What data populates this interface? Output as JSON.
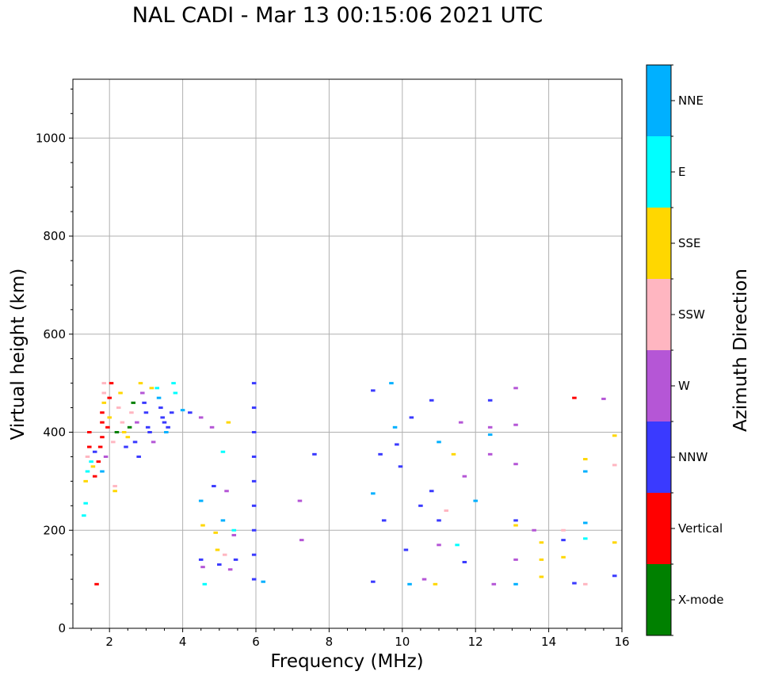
{
  "chart_data": {
    "type": "scatter",
    "title": "NAL CADI - Mar 13 00:15:06 2021 UTC",
    "xlabel": "Frequency (MHz)",
    "ylabel": "Virtual height (km)",
    "xlim": [
      1,
      16
    ],
    "ylim": [
      0,
      1120
    ],
    "xticks": [
      2,
      4,
      6,
      8,
      10,
      12,
      14,
      16
    ],
    "yticks": [
      0,
      200,
      400,
      600,
      800,
      1000
    ],
    "grid": true,
    "colorbar": {
      "label": "Azimuth Direction",
      "categories": [
        {
          "name": "X-mode",
          "color": "#008000"
        },
        {
          "name": "Vertical",
          "color": "#ff0000"
        },
        {
          "name": "NNW",
          "color": "#3a3aff"
        },
        {
          "name": "W",
          "color": "#b556d6"
        },
        {
          "name": "SSW",
          "color": "#ffb6c1"
        },
        {
          "name": "SSE",
          "color": "#ffd700"
        },
        {
          "name": "E",
          "color": "#00ffff"
        },
        {
          "name": "NNE",
          "color": "#00b0ff"
        }
      ]
    },
    "points": [
      {
        "f": 1.3,
        "h": 230,
        "c": "E"
      },
      {
        "f": 1.35,
        "h": 255,
        "c": "E"
      },
      {
        "f": 1.35,
        "h": 300,
        "c": "SSE"
      },
      {
        "f": 1.4,
        "h": 320,
        "c": "E"
      },
      {
        "f": 1.4,
        "h": 350,
        "c": "SSW"
      },
      {
        "f": 1.45,
        "h": 370,
        "c": "Vertical"
      },
      {
        "f": 1.45,
        "h": 400,
        "c": "Vertical"
      },
      {
        "f": 1.5,
        "h": 340,
        "c": "E"
      },
      {
        "f": 1.55,
        "h": 330,
        "c": "SSE"
      },
      {
        "f": 1.6,
        "h": 310,
        "c": "Vertical"
      },
      {
        "f": 1.6,
        "h": 360,
        "c": "NNW"
      },
      {
        "f": 1.65,
        "h": 90,
        "c": "Vertical"
      },
      {
        "f": 1.7,
        "h": 340,
        "c": "Vertical"
      },
      {
        "f": 1.75,
        "h": 370,
        "c": "Vertical"
      },
      {
        "f": 1.8,
        "h": 390,
        "c": "Vertical"
      },
      {
        "f": 1.8,
        "h": 420,
        "c": "Vertical"
      },
      {
        "f": 1.8,
        "h": 440,
        "c": "Vertical"
      },
      {
        "f": 1.85,
        "h": 460,
        "c": "SSE"
      },
      {
        "f": 1.85,
        "h": 480,
        "c": "SSW"
      },
      {
        "f": 1.85,
        "h": 500,
        "c": "SSW"
      },
      {
        "f": 1.8,
        "h": 320,
        "c": "NNE"
      },
      {
        "f": 1.9,
        "h": 350,
        "c": "W"
      },
      {
        "f": 1.95,
        "h": 410,
        "c": "Vertical"
      },
      {
        "f": 2.0,
        "h": 430,
        "c": "SSE"
      },
      {
        "f": 2.0,
        "h": 470,
        "c": "Vertical"
      },
      {
        "f": 2.05,
        "h": 500,
        "c": "Vertical"
      },
      {
        "f": 2.1,
        "h": 380,
        "c": "SSW"
      },
      {
        "f": 2.15,
        "h": 280,
        "c": "SSE"
      },
      {
        "f": 2.15,
        "h": 290,
        "c": "SSW"
      },
      {
        "f": 2.2,
        "h": 400,
        "c": "X-mode"
      },
      {
        "f": 2.25,
        "h": 450,
        "c": "SSW"
      },
      {
        "f": 2.3,
        "h": 480,
        "c": "SSE"
      },
      {
        "f": 2.35,
        "h": 420,
        "c": "SSW"
      },
      {
        "f": 2.4,
        "h": 400,
        "c": "SSE"
      },
      {
        "f": 2.45,
        "h": 370,
        "c": "NNW"
      },
      {
        "f": 2.5,
        "h": 390,
        "c": "SSE"
      },
      {
        "f": 2.55,
        "h": 410,
        "c": "X-mode"
      },
      {
        "f": 2.6,
        "h": 440,
        "c": "SSW"
      },
      {
        "f": 2.65,
        "h": 460,
        "c": "X-mode"
      },
      {
        "f": 2.7,
        "h": 380,
        "c": "NNW"
      },
      {
        "f": 2.75,
        "h": 420,
        "c": "W"
      },
      {
        "f": 2.8,
        "h": 350,
        "c": "NNW"
      },
      {
        "f": 2.85,
        "h": 500,
        "c": "SSE"
      },
      {
        "f": 2.9,
        "h": 480,
        "c": "W"
      },
      {
        "f": 2.95,
        "h": 460,
        "c": "NNW"
      },
      {
        "f": 3.0,
        "h": 440,
        "c": "NNW"
      },
      {
        "f": 3.05,
        "h": 410,
        "c": "NNW"
      },
      {
        "f": 3.1,
        "h": 400,
        "c": "NNW"
      },
      {
        "f": 3.15,
        "h": 490,
        "c": "SSE"
      },
      {
        "f": 3.2,
        "h": 380,
        "c": "W"
      },
      {
        "f": 3.3,
        "h": 490,
        "c": "E"
      },
      {
        "f": 3.35,
        "h": 470,
        "c": "NNE"
      },
      {
        "f": 3.4,
        "h": 450,
        "c": "NNW"
      },
      {
        "f": 3.45,
        "h": 430,
        "c": "NNW"
      },
      {
        "f": 3.5,
        "h": 420,
        "c": "NNW"
      },
      {
        "f": 3.55,
        "h": 400,
        "c": "NNE"
      },
      {
        "f": 3.6,
        "h": 410,
        "c": "NNW"
      },
      {
        "f": 3.7,
        "h": 440,
        "c": "NNW"
      },
      {
        "f": 3.75,
        "h": 500,
        "c": "E"
      },
      {
        "f": 3.8,
        "h": 480,
        "c": "E"
      },
      {
        "f": 4.0,
        "h": 445,
        "c": "NNE"
      },
      {
        "f": 4.2,
        "h": 440,
        "c": "NNW"
      },
      {
        "f": 4.5,
        "h": 430,
        "c": "W"
      },
      {
        "f": 4.5,
        "h": 260,
        "c": "NNE"
      },
      {
        "f": 4.55,
        "h": 210,
        "c": "SSE"
      },
      {
        "f": 4.5,
        "h": 140,
        "c": "NNW"
      },
      {
        "f": 4.55,
        "h": 125,
        "c": "W"
      },
      {
        "f": 4.6,
        "h": 90,
        "c": "E"
      },
      {
        "f": 4.8,
        "h": 410,
        "c": "W"
      },
      {
        "f": 4.85,
        "h": 290,
        "c": "NNW"
      },
      {
        "f": 4.9,
        "h": 195,
        "c": "SSE"
      },
      {
        "f": 4.95,
        "h": 160,
        "c": "SSE"
      },
      {
        "f": 5.0,
        "h": 130,
        "c": "NNW"
      },
      {
        "f": 5.1,
        "h": 360,
        "c": "E"
      },
      {
        "f": 5.1,
        "h": 220,
        "c": "NNE"
      },
      {
        "f": 5.15,
        "h": 150,
        "c": "SSW"
      },
      {
        "f": 5.2,
        "h": 280,
        "c": "W"
      },
      {
        "f": 5.25,
        "h": 420,
        "c": "SSE"
      },
      {
        "f": 5.3,
        "h": 120,
        "c": "W"
      },
      {
        "f": 5.4,
        "h": 200,
        "c": "E"
      },
      {
        "f": 5.4,
        "h": 190,
        "c": "W"
      },
      {
        "f": 5.45,
        "h": 140,
        "c": "NNW"
      },
      {
        "f": 5.95,
        "h": 500,
        "c": "NNW"
      },
      {
        "f": 5.95,
        "h": 450,
        "c": "NNW"
      },
      {
        "f": 5.95,
        "h": 400,
        "c": "NNW"
      },
      {
        "f": 5.95,
        "h": 350,
        "c": "NNW"
      },
      {
        "f": 5.95,
        "h": 300,
        "c": "NNW"
      },
      {
        "f": 5.95,
        "h": 250,
        "c": "NNW"
      },
      {
        "f": 5.95,
        "h": 200,
        "c": "NNW"
      },
      {
        "f": 5.95,
        "h": 150,
        "c": "NNW"
      },
      {
        "f": 5.95,
        "h": 100,
        "c": "NNW"
      },
      {
        "f": 6.2,
        "h": 95,
        "c": "NNE"
      },
      {
        "f": 7.2,
        "h": 260,
        "c": "W"
      },
      {
        "f": 7.25,
        "h": 180,
        "c": "W"
      },
      {
        "f": 7.6,
        "h": 355,
        "c": "NNW"
      },
      {
        "f": 9.2,
        "h": 485,
        "c": "NNW"
      },
      {
        "f": 9.2,
        "h": 275,
        "c": "NNE"
      },
      {
        "f": 9.2,
        "h": 95,
        "c": "NNW"
      },
      {
        "f": 9.4,
        "h": 355,
        "c": "NNW"
      },
      {
        "f": 9.5,
        "h": 220,
        "c": "NNW"
      },
      {
        "f": 9.7,
        "h": 500,
        "c": "NNE"
      },
      {
        "f": 9.8,
        "h": 410,
        "c": "NNE"
      },
      {
        "f": 9.85,
        "h": 375,
        "c": "NNW"
      },
      {
        "f": 9.95,
        "h": 330,
        "c": "NNW"
      },
      {
        "f": 10.1,
        "h": 160,
        "c": "NNW"
      },
      {
        "f": 10.2,
        "h": 90,
        "c": "NNE"
      },
      {
        "f": 10.25,
        "h": 430,
        "c": "NNW"
      },
      {
        "f": 10.5,
        "h": 250,
        "c": "NNW"
      },
      {
        "f": 10.6,
        "h": 100,
        "c": "W"
      },
      {
        "f": 10.8,
        "h": 465,
        "c": "NNW"
      },
      {
        "f": 10.8,
        "h": 280,
        "c": "NNW"
      },
      {
        "f": 10.9,
        "h": 90,
        "c": "SSE"
      },
      {
        "f": 11.0,
        "h": 380,
        "c": "NNE"
      },
      {
        "f": 11.0,
        "h": 220,
        "c": "NNW"
      },
      {
        "f": 11.0,
        "h": 170,
        "c": "W"
      },
      {
        "f": 11.2,
        "h": 240,
        "c": "SSW"
      },
      {
        "f": 11.4,
        "h": 355,
        "c": "SSE"
      },
      {
        "f": 11.5,
        "h": 170,
        "c": "E"
      },
      {
        "f": 11.6,
        "h": 420,
        "c": "W"
      },
      {
        "f": 11.7,
        "h": 310,
        "c": "W"
      },
      {
        "f": 11.7,
        "h": 135,
        "c": "NNW"
      },
      {
        "f": 12.0,
        "h": 260,
        "c": "NNE"
      },
      {
        "f": 12.4,
        "h": 465,
        "c": "NNW"
      },
      {
        "f": 12.4,
        "h": 410,
        "c": "W"
      },
      {
        "f": 12.4,
        "h": 395,
        "c": "NNE"
      },
      {
        "f": 12.4,
        "h": 355,
        "c": "W"
      },
      {
        "f": 12.5,
        "h": 90,
        "c": "W"
      },
      {
        "f": 13.1,
        "h": 490,
        "c": "W"
      },
      {
        "f": 13.1,
        "h": 415,
        "c": "W"
      },
      {
        "f": 13.1,
        "h": 335,
        "c": "W"
      },
      {
        "f": 13.1,
        "h": 220,
        "c": "NNW"
      },
      {
        "f": 13.1,
        "h": 210,
        "c": "SSE"
      },
      {
        "f": 13.1,
        "h": 140,
        "c": "W"
      },
      {
        "f": 13.1,
        "h": 90,
        "c": "NNE"
      },
      {
        "f": 13.6,
        "h": 200,
        "c": "W"
      },
      {
        "f": 13.8,
        "h": 175,
        "c": "SSE"
      },
      {
        "f": 13.8,
        "h": 140,
        "c": "SSE"
      },
      {
        "f": 13.8,
        "h": 105,
        "c": "SSE"
      },
      {
        "f": 14.4,
        "h": 200,
        "c": "SSW"
      },
      {
        "f": 14.4,
        "h": 180,
        "c": "NNW"
      },
      {
        "f": 14.4,
        "h": 145,
        "c": "SSE"
      },
      {
        "f": 14.7,
        "h": 470,
        "c": "Vertical"
      },
      {
        "f": 14.7,
        "h": 92,
        "c": "NNW"
      },
      {
        "f": 15.0,
        "h": 345,
        "c": "SSE"
      },
      {
        "f": 15.0,
        "h": 320,
        "c": "NNE"
      },
      {
        "f": 15.0,
        "h": 215,
        "c": "NNE"
      },
      {
        "f": 15.0,
        "h": 183,
        "c": "E"
      },
      {
        "f": 15.0,
        "h": 90,
        "c": "SSW"
      },
      {
        "f": 15.5,
        "h": 468,
        "c": "W"
      },
      {
        "f": 15.8,
        "h": 393,
        "c": "SSE"
      },
      {
        "f": 15.8,
        "h": 333,
        "c": "SSW"
      },
      {
        "f": 15.8,
        "h": 175,
        "c": "SSE"
      },
      {
        "f": 15.8,
        "h": 107,
        "c": "NNW"
      }
    ]
  }
}
